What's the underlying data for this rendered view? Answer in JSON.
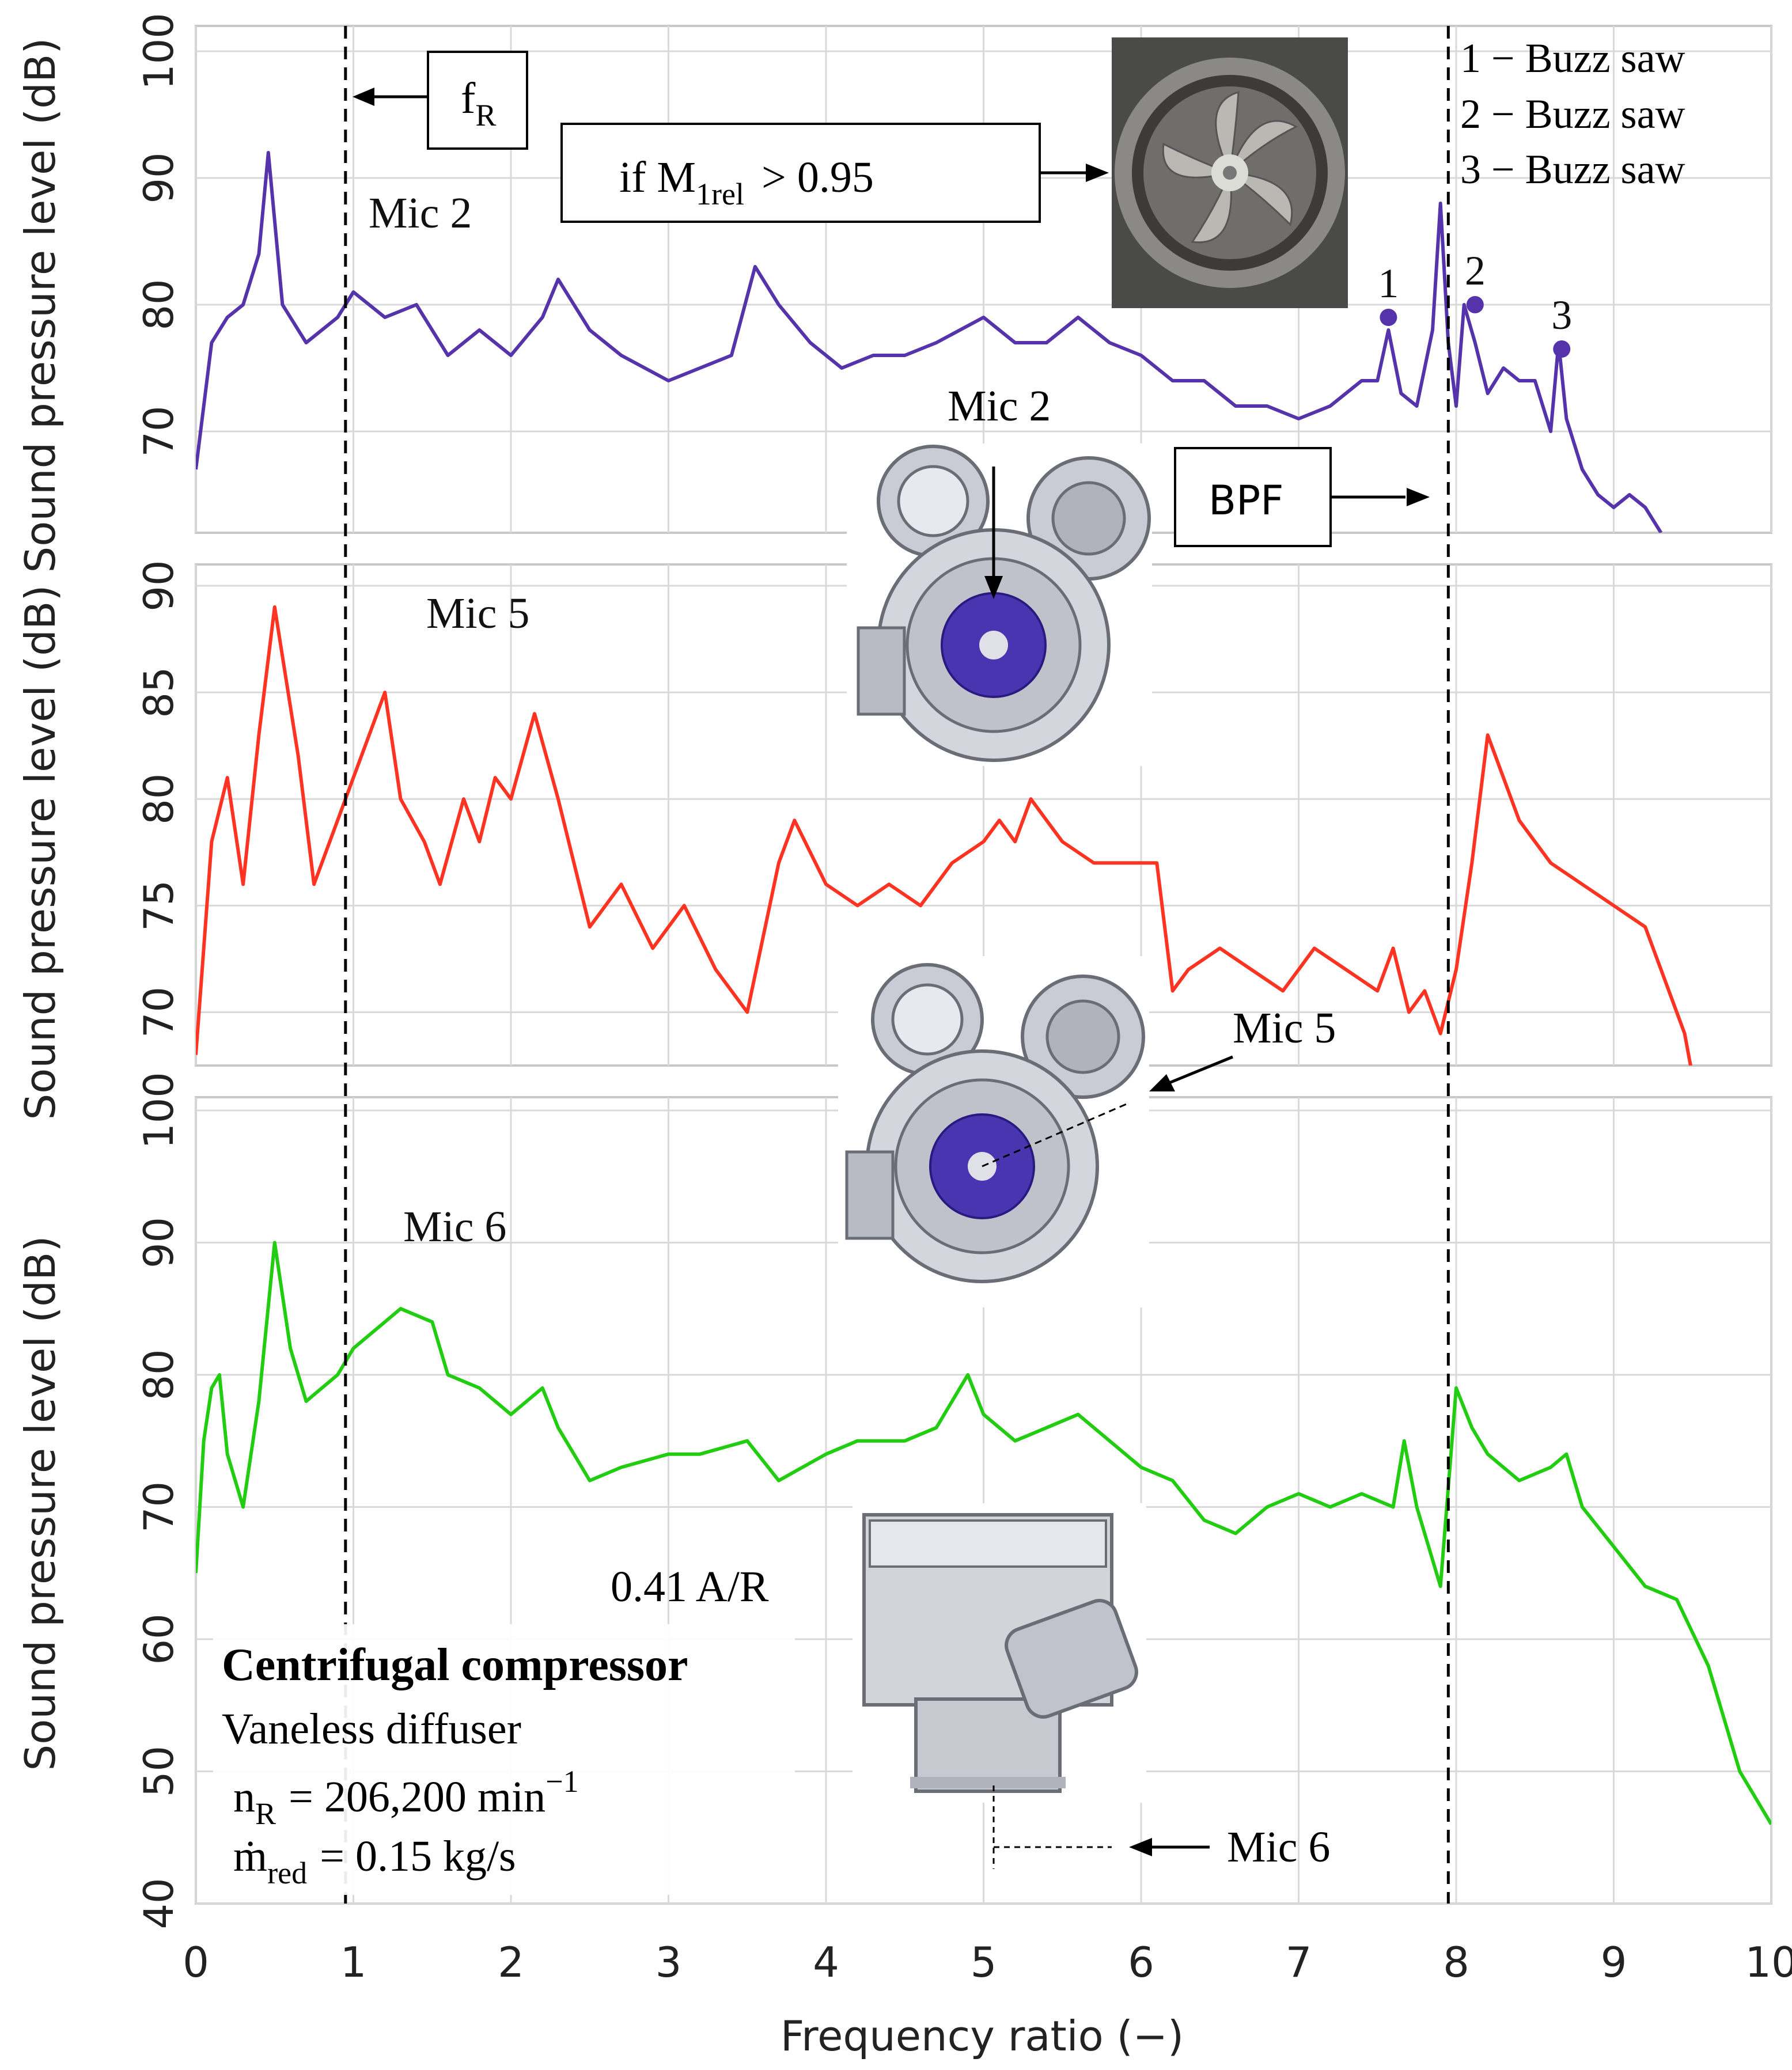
{
  "chart_data": {
    "type": "line",
    "xlabel": "Frequency ratio (−)",
    "xlim": [
      0,
      10
    ],
    "xticks": [
      "0",
      "1",
      "2",
      "3",
      "4",
      "5",
      "6",
      "7",
      "8",
      "9",
      "10"
    ],
    "grid": true,
    "panels": [
      {
        "id": "mic2",
        "label": "Mic 2",
        "ylabel": "Sound pressure level  (dB)",
        "ylim": [
          62,
          102
        ],
        "yticks": [
          "70",
          "80",
          "90",
          "100"
        ],
        "color": "#5533aa",
        "series": [
          {
            "x": [
              0,
              0.1,
              0.2,
              0.3,
              0.4,
              0.46,
              0.55,
              0.7,
              0.9,
              1.0,
              1.2,
              1.4,
              1.6,
              1.8,
              2.0,
              2.2,
              2.3,
              2.5,
              2.7,
              3.0,
              3.2,
              3.4,
              3.55,
              3.7,
              3.9,
              4.1,
              4.3,
              4.5,
              4.7,
              5.0,
              5.2,
              5.4,
              5.6,
              5.8,
              6.0,
              6.2,
              6.4,
              6.6,
              6.8,
              7.0,
              7.2,
              7.4,
              7.5,
              7.57,
              7.65,
              7.75,
              7.85,
              7.9,
              7.95,
              8.0,
              8.05,
              8.12,
              8.2,
              8.3,
              8.4,
              8.5,
              8.6,
              8.65,
              8.7,
              8.8,
              8.9,
              9.0,
              9.1,
              9.2,
              9.3
            ],
            "y": [
              67,
              77,
              79,
              80,
              84,
              92,
              80,
              77,
              79,
              81,
              79,
              80,
              76,
              78,
              76,
              79,
              82,
              78,
              76,
              74,
              75,
              76,
              83,
              80,
              77,
              75,
              76,
              76,
              77,
              79,
              77,
              77,
              79,
              77,
              76,
              74,
              74,
              72,
              72,
              71,
              72,
              74,
              74,
              78,
              73,
              72,
              78,
              88,
              77,
              72,
              80,
              77,
              73,
              75,
              74,
              74,
              70,
              77,
              71,
              67,
              65,
              64,
              65,
              64,
              62
            ]
          }
        ],
        "markers": [
          {
            "label": "1",
            "x": 7.57,
            "y": 79
          },
          {
            "label": "2",
            "x": 8.12,
            "y": 80
          },
          {
            "label": "3",
            "x": 8.67,
            "y": 76.5
          }
        ]
      },
      {
        "id": "mic5",
        "label": "Mic 5",
        "ylabel": "Sound pressure level  (dB)",
        "ylim": [
          67.5,
          91
        ],
        "yticks": [
          "70",
          "75",
          "80",
          "85",
          "90"
        ],
        "color": "#ff3322",
        "series": [
          {
            "x": [
              0,
              0.1,
              0.2,
              0.3,
              0.4,
              0.5,
              0.65,
              0.75,
              0.9,
              1.0,
              1.1,
              1.2,
              1.3,
              1.45,
              1.55,
              1.7,
              1.8,
              1.9,
              2.0,
              2.15,
              2.3,
              2.5,
              2.7,
              2.9,
              3.1,
              3.3,
              3.5,
              3.7,
              3.8,
              4.0,
              4.2,
              4.4,
              4.6,
              4.8,
              5.0,
              5.1,
              5.2,
              5.3,
              5.4,
              5.5,
              5.7,
              5.9,
              6.1,
              6.2,
              6.3,
              6.5,
              6.7,
              6.9,
              7.1,
              7.3,
              7.5,
              7.6,
              7.7,
              7.8,
              7.9,
              8.0,
              8.1,
              8.2,
              8.4,
              8.6,
              8.8,
              9.0,
              9.2,
              9.3,
              9.45,
              9.5
            ],
            "y": [
              68,
              78,
              81,
              76,
              83,
              89,
              82,
              76,
              79,
              81,
              83,
              85,
              80,
              78,
              76,
              80,
              78,
              81,
              80,
              84,
              80,
              74,
              76,
              73,
              75,
              72,
              70,
              77,
              79,
              76,
              75,
              76,
              75,
              77,
              78,
              79,
              78,
              80,
              79,
              78,
              77,
              77,
              77,
              71,
              72,
              73,
              72,
              71,
              73,
              72,
              71,
              73,
              70,
              71,
              69,
              72,
              77,
              83,
              79,
              77,
              76,
              75,
              74,
              72,
              69,
              67
            ]
          }
        ]
      },
      {
        "id": "mic6",
        "label": "Mic 6",
        "ylabel": "Sound pressure level  (dB)",
        "ylim": [
          40,
          101
        ],
        "yticks": [
          "40",
          "50",
          "60",
          "70",
          "80",
          "90",
          "100"
        ],
        "color": "#22cc11",
        "series": [
          {
            "x": [
              0,
              0.05,
              0.1,
              0.15,
              0.2,
              0.3,
              0.4,
              0.5,
              0.6,
              0.7,
              0.8,
              0.9,
              1.0,
              1.1,
              1.2,
              1.3,
              1.5,
              1.6,
              1.8,
              2.0,
              2.2,
              2.3,
              2.5,
              2.7,
              3.0,
              3.2,
              3.5,
              3.7,
              4.0,
              4.2,
              4.5,
              4.7,
              4.9,
              5.0,
              5.2,
              5.4,
              5.6,
              5.8,
              6.0,
              6.2,
              6.4,
              6.6,
              6.8,
              7.0,
              7.2,
              7.4,
              7.6,
              7.67,
              7.75,
              7.85,
              7.9,
              8.0,
              8.1,
              8.2,
              8.4,
              8.6,
              8.7,
              8.8,
              9.0,
              9.2,
              9.4,
              9.6,
              9.8,
              9.9,
              10.0
            ],
            "y": [
              65,
              75,
              79,
              80,
              74,
              70,
              78,
              90,
              82,
              78,
              79,
              80,
              82,
              83,
              84,
              85,
              84,
              80,
              79,
              77,
              79,
              76,
              72,
              73,
              74,
              74,
              75,
              72,
              74,
              75,
              75,
              76,
              80,
              77,
              75,
              76,
              77,
              75,
              73,
              72,
              69,
              68,
              70,
              71,
              70,
              71,
              70,
              75,
              70,
              66,
              64,
              79,
              76,
              74,
              72,
              73,
              74,
              70,
              67,
              64,
              63,
              58,
              50,
              48,
              46
            ]
          }
        ]
      }
    ],
    "annotations": {
      "fR": "f",
      "fR_sub": "R",
      "condition_if": "if M",
      "condition_sub": "1rel",
      "condition_rest": "> 0.95",
      "bpf": "BPF",
      "mic2_install": "Mic 2",
      "mic5_install": "Mic 5",
      "mic6_install": "Mic 6",
      "legend": [
        "1 − Buzz saw",
        "2 − Buzz saw",
        "3 − Buzz saw"
      ],
      "marker_labels": [
        "1",
        "2",
        "3"
      ],
      "ar": "0.41 A/R",
      "compressor_title": "Centrifugal compressor",
      "diffuser": "Vaneless diffuser",
      "speed_var": "n",
      "speed_sub": "R",
      "speed_value": "= 206,200 min",
      "speed_exp": "−1",
      "mass_var": "ṁ",
      "mass_sub": "red",
      "mass_value": "= 0.15 kg/s"
    },
    "vlines": [
      {
        "name": "fR",
        "x": 0.95
      },
      {
        "name": "BPF",
        "x": 7.95
      }
    ]
  }
}
